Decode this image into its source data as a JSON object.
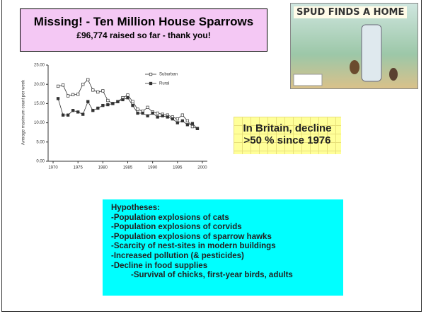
{
  "header": {
    "title": "Missing! - Ten Million House Sparrows",
    "subtitle": "£96,774 raised so far - thank you!"
  },
  "image": {
    "caption": "SPUD FINDS A HOME"
  },
  "chart": {
    "type": "line",
    "ylabel": "Average maximum count per week",
    "x": [
      1971,
      1972,
      1973,
      1974,
      1975,
      1976,
      1977,
      1978,
      1979,
      1980,
      1981,
      1982,
      1983,
      1984,
      1985,
      1986,
      1987,
      1988,
      1989,
      1990,
      1991,
      1992,
      1993,
      1994,
      1995,
      1996,
      1997,
      1998,
      1999
    ],
    "series": [
      {
        "name": "Suburban",
        "color": "#333333",
        "marker": "open-square",
        "values": [
          19.5,
          19.8,
          17,
          17.3,
          17.4,
          20,
          21.2,
          18.5,
          18,
          18.3,
          15.8,
          15,
          15.5,
          16.5,
          17.2,
          15.5,
          13.5,
          13,
          14,
          12.8,
          12.5,
          12.2,
          12,
          11.5,
          11,
          12,
          10.5,
          9,
          8.5
        ]
      },
      {
        "name": "Rural",
        "color": "#333333",
        "marker": "filled-square",
        "values": [
          16.3,
          12,
          12,
          13.2,
          12.8,
          12.2,
          15.5,
          13.2,
          13.8,
          14.5,
          14.7,
          15,
          15.5,
          16,
          16.5,
          14.5,
          12.5,
          12.5,
          11.8,
          12.5,
          11.5,
          11.8,
          11.5,
          11,
          10,
          10.5,
          9.5,
          9.8,
          8.5
        ]
      }
    ],
    "xlim": [
      1969,
      2001
    ],
    "xticks": [
      1970,
      1975,
      1980,
      1985,
      1990,
      1995,
      2000
    ],
    "ylim": [
      0,
      25
    ],
    "yticks": [
      {
        "value": 0,
        "label": "0.00"
      },
      {
        "value": 5,
        "label": "5.00"
      },
      {
        "value": 10,
        "label": "10.00"
      },
      {
        "value": 15,
        "label": "15.00"
      },
      {
        "value": 20,
        "label": "20.00"
      },
      {
        "value": 25,
        "label": "25.00"
      }
    ]
  },
  "callout": "In Britain, decline >50 % since 1976",
  "hypotheses": {
    "heading": "Hypotheses:",
    "items": [
      "-Population explosions of cats",
      "-Population explosions of corvids",
      "-Population explosions of sparrow hawks",
      "-Scarcity of nest-sites in modern buildings",
      "-Increased pollution (& pesticides)",
      "-Decline in food supplies"
    ],
    "subitem": "-Survival of chicks, first-year birds, adults"
  }
}
